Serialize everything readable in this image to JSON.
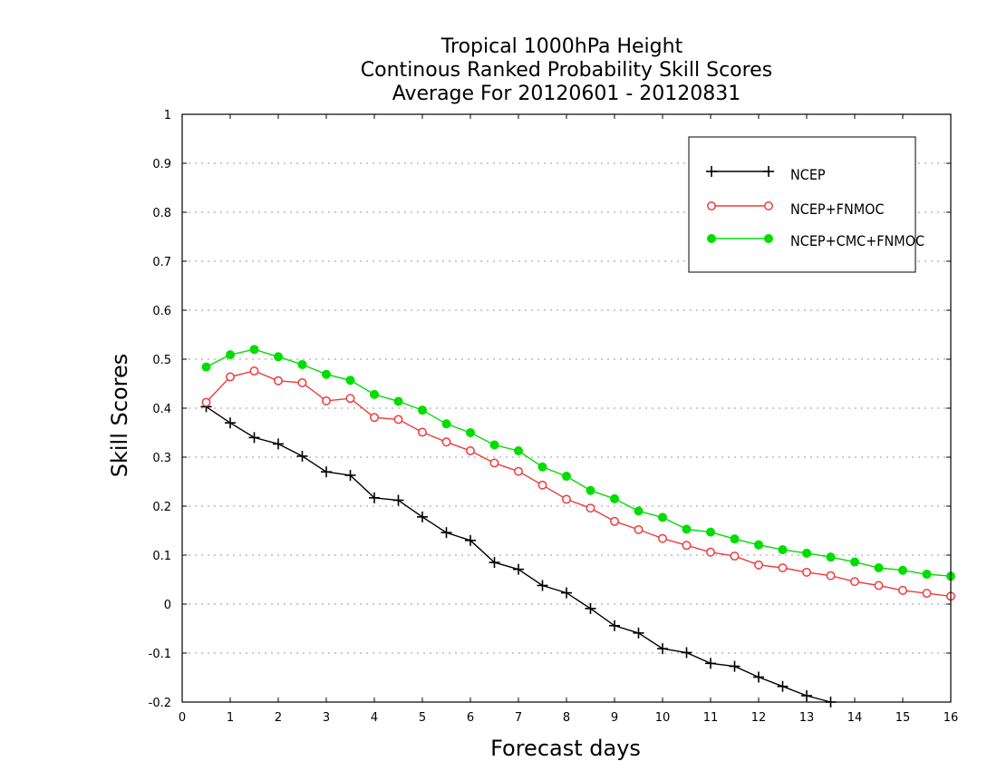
{
  "chart_data": {
    "type": "line",
    "title": [
      "Tropical 1000hPa Height",
      "Continous Ranked Probability Skill Scores",
      "Average For 20120601 - 20120831"
    ],
    "xlabel": "Forecast days",
    "ylabel": "Skill Scores",
    "xlim": [
      0,
      16
    ],
    "ylim": [
      -0.2,
      1
    ],
    "x_ticks": [
      0,
      1,
      2,
      3,
      4,
      5,
      6,
      7,
      8,
      9,
      10,
      11,
      12,
      13,
      14,
      15,
      16
    ],
    "y_ticks": [
      -0.2,
      -0.1,
      0,
      0.1,
      0.2,
      0.3,
      0.4,
      0.5,
      0.6,
      0.7,
      0.8,
      0.9,
      1
    ],
    "grid": "horizontal dotted",
    "legend_position": "top-right",
    "series": [
      {
        "name": "NCEP",
        "color": "#000000",
        "marker": "plus",
        "x": [
          0.5,
          1,
          1.5,
          2,
          2.5,
          3,
          3.5,
          4,
          4.5,
          5,
          5.5,
          6,
          6.5,
          7,
          7.5,
          8,
          8.5,
          9,
          9.5,
          10,
          10.5,
          11,
          11.5,
          12,
          12.5,
          13,
          13.5
        ],
        "values": [
          0.403,
          0.37,
          0.34,
          0.327,
          0.302,
          0.27,
          0.263,
          0.217,
          0.212,
          0.178,
          0.146,
          0.13,
          0.085,
          0.071,
          0.038,
          0.023,
          -0.009,
          -0.044,
          -0.059,
          -0.091,
          -0.099,
          -0.121,
          -0.127,
          -0.149,
          -0.168,
          -0.187,
          -0.2
        ]
      },
      {
        "name": "NCEP+FNMOC",
        "color": "#ee3b3b",
        "marker": "open-circle",
        "x": [
          0.5,
          1,
          1.5,
          2,
          2.5,
          3,
          3.5,
          4,
          4.5,
          5,
          5.5,
          6,
          6.5,
          7,
          7.5,
          8,
          8.5,
          9,
          9.5,
          10,
          10.5,
          11,
          11.5,
          12,
          12.5,
          13,
          13.5,
          14,
          14.5,
          15,
          15.5,
          16
        ],
        "values": [
          0.412,
          0.464,
          0.476,
          0.456,
          0.452,
          0.415,
          0.42,
          0.381,
          0.377,
          0.351,
          0.331,
          0.313,
          0.288,
          0.271,
          0.243,
          0.214,
          0.196,
          0.169,
          0.152,
          0.134,
          0.12,
          0.106,
          0.098,
          0.08,
          0.074,
          0.065,
          0.058,
          0.046,
          0.038,
          0.028,
          0.022,
          0.016
        ]
      },
      {
        "name": "NCEP+CMC+FNMOC",
        "color": "#00dd00",
        "marker": "filled-circle",
        "x": [
          0.5,
          1,
          1.5,
          2,
          2.5,
          3,
          3.5,
          4,
          4.5,
          5,
          5.5,
          6,
          6.5,
          7,
          7.5,
          8,
          8.5,
          9,
          9.5,
          10,
          10.5,
          11,
          11.5,
          12,
          12.5,
          13,
          13.5,
          14,
          14.5,
          15,
          15.5,
          16
        ],
        "values": [
          0.484,
          0.509,
          0.52,
          0.505,
          0.489,
          0.469,
          0.457,
          0.428,
          0.414,
          0.396,
          0.368,
          0.35,
          0.325,
          0.313,
          0.28,
          0.261,
          0.232,
          0.215,
          0.19,
          0.177,
          0.153,
          0.147,
          0.133,
          0.121,
          0.111,
          0.104,
          0.096,
          0.086,
          0.074,
          0.069,
          0.061,
          0.057
        ]
      }
    ]
  }
}
